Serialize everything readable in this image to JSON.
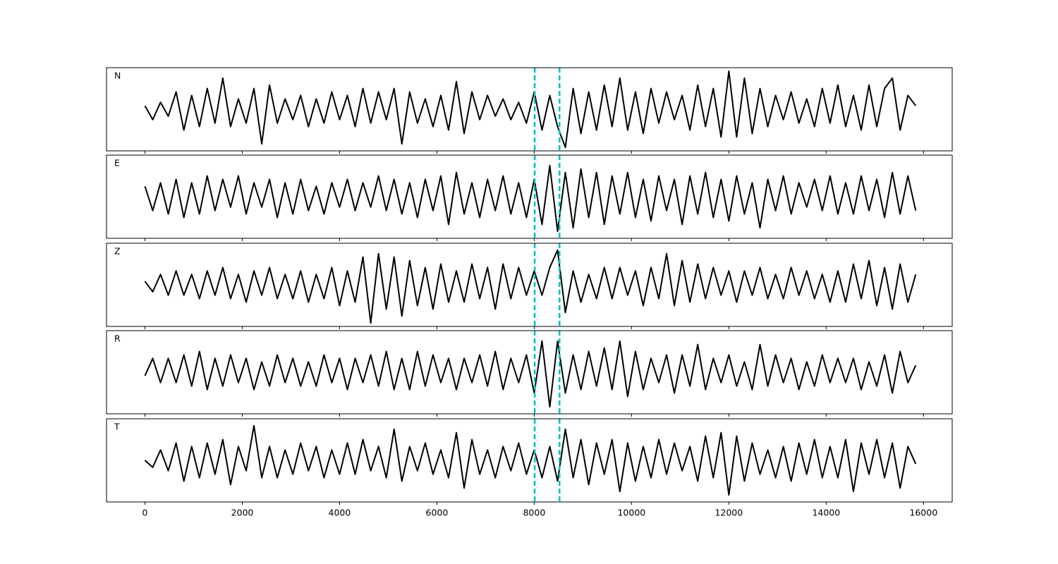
{
  "chart_data": {
    "type": "line",
    "x": [
      0,
      160,
      320,
      480,
      640,
      800,
      960,
      1120,
      1280,
      1440,
      1600,
      1760,
      1920,
      2080,
      2240,
      2400,
      2560,
      2720,
      2880,
      3040,
      3200,
      3360,
      3520,
      3680,
      3840,
      4000,
      4160,
      4320,
      4480,
      4640,
      4800,
      4960,
      5120,
      5280,
      5440,
      5600,
      5760,
      5920,
      6080,
      6240,
      6400,
      6560,
      6720,
      6880,
      7040,
      7200,
      7360,
      7520,
      7680,
      7840,
      8000,
      8160,
      8320,
      8480,
      8640,
      8800,
      8960,
      9120,
      9280,
      9440,
      9600,
      9760,
      9920,
      10080,
      10240,
      10400,
      10560,
      10720,
      10880,
      11040,
      11200,
      11360,
      11520,
      11680,
      11840,
      12000,
      12160,
      12320,
      12480,
      12640,
      12800,
      12960,
      13120,
      13280,
      13440,
      13600,
      13760,
      13920,
      14080,
      14240,
      14400,
      14560,
      14720,
      14880,
      15040,
      15200,
      15360,
      15520,
      15680,
      15840
    ],
    "series": [
      {
        "name": "N",
        "color": "#000000",
        "values": [
          0.1,
          -0.3,
          0.2,
          -0.2,
          0.5,
          -0.6,
          0.4,
          -0.5,
          0.6,
          -0.4,
          0.9,
          -0.5,
          0.3,
          -0.4,
          0.6,
          -1.0,
          0.7,
          -0.4,
          0.3,
          -0.3,
          0.4,
          -0.5,
          0.3,
          -0.4,
          0.5,
          -0.3,
          0.4,
          -0.5,
          0.6,
          -0.4,
          0.5,
          -0.3,
          0.6,
          -1.0,
          0.5,
          -0.4,
          0.3,
          -0.5,
          0.4,
          -0.6,
          0.8,
          -0.7,
          0.5,
          -0.3,
          0.4,
          -0.2,
          0.3,
          -0.3,
          0.2,
          -0.4,
          0.5,
          -0.6,
          0.4,
          -0.5,
          -1.1,
          0.6,
          -0.7,
          0.5,
          -0.6,
          0.7,
          -0.5,
          0.9,
          -0.6,
          0.5,
          -0.7,
          0.6,
          -0.4,
          0.5,
          -0.3,
          0.4,
          -0.6,
          0.7,
          -0.5,
          0.6,
          -0.8,
          1.1,
          -0.8,
          0.9,
          -0.7,
          0.6,
          -0.5,
          0.4,
          -0.3,
          0.5,
          -0.4,
          0.3,
          -0.5,
          0.6,
          -0.4,
          0.7,
          -0.5,
          0.4,
          -0.6,
          0.7,
          -0.5,
          0.6,
          0.9,
          -0.6,
          0.4,
          0.1
        ]
      },
      {
        "name": "E",
        "color": "#000000",
        "values": [
          0.3,
          -0.4,
          0.4,
          -0.5,
          0.5,
          -0.6,
          0.4,
          -0.5,
          0.6,
          -0.4,
          0.5,
          -0.3,
          0.6,
          -0.5,
          0.4,
          -0.3,
          0.5,
          -0.6,
          0.4,
          -0.5,
          0.5,
          -0.4,
          0.3,
          -0.5,
          0.4,
          -0.3,
          0.5,
          -0.4,
          0.4,
          -0.3,
          0.6,
          -0.4,
          0.5,
          -0.5,
          0.4,
          -0.6,
          0.5,
          -0.4,
          0.6,
          -0.8,
          0.7,
          -0.5,
          0.4,
          -0.6,
          0.5,
          -0.4,
          0.6,
          -0.5,
          0.4,
          -0.6,
          0.5,
          -0.8,
          0.9,
          -1.0,
          0.7,
          -0.9,
          0.8,
          -0.6,
          0.7,
          -0.8,
          0.6,
          -0.5,
          0.7,
          -0.6,
          0.5,
          -0.7,
          0.6,
          -0.4,
          0.5,
          -0.8,
          0.6,
          -0.5,
          0.7,
          -0.6,
          0.5,
          -0.7,
          0.6,
          -0.5,
          0.4,
          -0.9,
          0.5,
          -0.4,
          0.6,
          -0.5,
          0.4,
          -0.3,
          0.5,
          -0.4,
          0.6,
          -0.5,
          0.4,
          -0.5,
          0.6,
          -0.4,
          0.5,
          -0.6,
          0.7,
          -0.5,
          0.6,
          -0.4
        ]
      },
      {
        "name": "Z",
        "color": "#000000",
        "values": [
          0.1,
          -0.2,
          0.3,
          -0.3,
          0.4,
          -0.3,
          0.3,
          -0.4,
          0.4,
          -0.3,
          0.5,
          -0.4,
          0.3,
          -0.5,
          0.4,
          -0.3,
          0.5,
          -0.4,
          0.3,
          -0.4,
          0.4,
          -0.5,
          0.3,
          -0.4,
          0.5,
          -0.6,
          0.4,
          -0.5,
          0.8,
          -1.1,
          0.9,
          -0.7,
          0.8,
          -0.9,
          0.7,
          -0.6,
          0.5,
          -0.7,
          0.6,
          -0.5,
          0.4,
          -0.5,
          0.6,
          -0.4,
          0.5,
          -0.7,
          0.6,
          -0.4,
          0.5,
          -0.3,
          0.4,
          -0.3,
          0.5,
          1.0,
          -0.8,
          0.4,
          -0.5,
          0.3,
          -0.4,
          0.5,
          -0.4,
          0.5,
          -0.3,
          0.4,
          -0.6,
          0.5,
          -0.4,
          0.9,
          -0.6,
          0.7,
          -0.5,
          0.6,
          -0.4,
          0.5,
          -0.3,
          0.4,
          -0.5,
          0.4,
          -0.3,
          0.5,
          -0.4,
          0.3,
          -0.4,
          0.5,
          -0.3,
          0.4,
          -0.4,
          0.3,
          -0.5,
          0.4,
          -0.5,
          0.6,
          -0.4,
          0.7,
          -0.6,
          0.5,
          -0.7,
          0.6,
          -0.5,
          0.3
        ]
      },
      {
        "name": "R",
        "color": "#000000",
        "values": [
          -0.1,
          0.4,
          -0.3,
          0.4,
          -0.3,
          0.5,
          -0.4,
          0.6,
          -0.5,
          0.4,
          -0.4,
          0.5,
          -0.3,
          0.4,
          -0.5,
          0.3,
          -0.4,
          0.5,
          -0.3,
          0.4,
          -0.4,
          0.3,
          -0.4,
          0.5,
          -0.3,
          0.4,
          -0.5,
          0.4,
          -0.3,
          0.5,
          -0.4,
          0.6,
          -0.5,
          0.4,
          -0.5,
          0.6,
          -0.4,
          0.5,
          -0.3,
          0.4,
          -0.5,
          0.4,
          -0.3,
          0.5,
          -0.4,
          0.6,
          -0.5,
          0.4,
          -0.3,
          0.5,
          -0.6,
          0.9,
          -1.0,
          0.9,
          -0.6,
          0.5,
          -0.5,
          0.6,
          -0.4,
          0.7,
          -0.5,
          0.9,
          -0.7,
          0.6,
          -0.5,
          0.4,
          -0.3,
          0.5,
          -0.6,
          0.5,
          -0.4,
          0.8,
          -0.5,
          0.4,
          -0.3,
          0.5,
          -0.4,
          0.3,
          -0.5,
          0.8,
          -0.4,
          0.5,
          -0.3,
          0.4,
          -0.5,
          0.3,
          -0.4,
          0.5,
          -0.3,
          0.4,
          -0.3,
          0.4,
          -0.5,
          0.3,
          -0.4,
          0.5,
          -0.6,
          0.6,
          -0.3,
          0.2
        ]
      },
      {
        "name": "T",
        "color": "#000000",
        "values": [
          0.0,
          -0.2,
          0.3,
          -0.3,
          0.5,
          -0.6,
          0.4,
          -0.5,
          0.5,
          -0.4,
          0.6,
          -0.7,
          0.4,
          -0.3,
          1.0,
          -0.5,
          0.4,
          -0.5,
          0.3,
          -0.4,
          0.5,
          -0.3,
          0.4,
          -0.5,
          0.3,
          -0.4,
          0.5,
          -0.4,
          0.6,
          -0.3,
          0.4,
          -0.5,
          0.9,
          -0.6,
          0.4,
          -0.3,
          0.5,
          -0.4,
          0.3,
          -0.5,
          0.8,
          -0.8,
          0.6,
          -0.4,
          0.3,
          -0.5,
          0.4,
          -0.3,
          0.5,
          -0.4,
          0.3,
          -0.5,
          0.4,
          -0.6,
          0.9,
          -0.5,
          0.6,
          -0.7,
          0.5,
          -0.4,
          0.6,
          -0.9,
          0.5,
          -0.6,
          0.4,
          -0.5,
          0.6,
          -0.4,
          0.5,
          -0.3,
          0.4,
          -0.6,
          0.7,
          -0.5,
          0.8,
          -1.0,
          0.7,
          -0.6,
          0.5,
          -0.4,
          0.3,
          -0.5,
          0.4,
          -0.6,
          0.5,
          -0.4,
          0.6,
          -0.5,
          0.4,
          -0.5,
          0.6,
          -0.9,
          0.5,
          -0.4,
          0.6,
          -0.5,
          0.5,
          -0.8,
          0.4,
          -0.1
        ]
      }
    ],
    "xlim": [
      -790,
      16590
    ],
    "xticks": [
      0,
      2000,
      4000,
      6000,
      8000,
      10000,
      12000,
      14000,
      16000
    ],
    "ylim": [
      -1.2,
      1.2
    ],
    "vlines": [
      8010,
      8520
    ],
    "vline_color": "#00bfbf"
  }
}
